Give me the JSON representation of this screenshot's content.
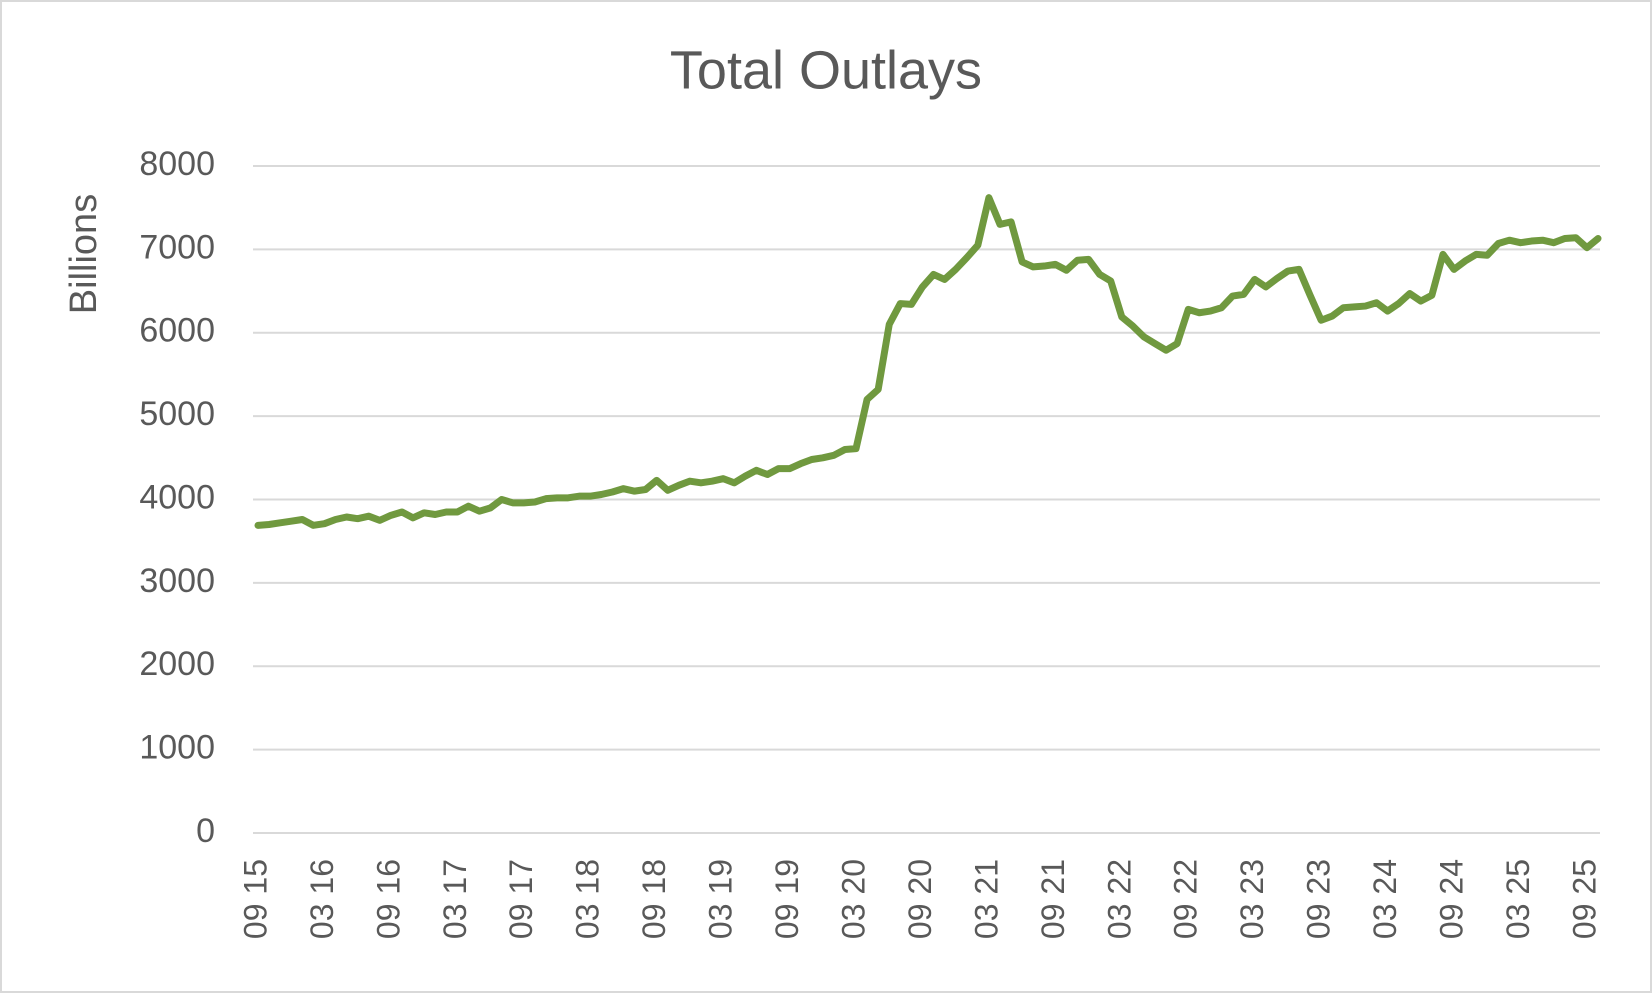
{
  "chart_data": {
    "type": "line",
    "title": "Total Outlays",
    "y_label": "Billions",
    "categories": [
      "09 15",
      null,
      null,
      null,
      null,
      null,
      "03 16",
      null,
      null,
      null,
      null,
      null,
      "09 16",
      null,
      null,
      null,
      null,
      null,
      "03 17",
      null,
      null,
      null,
      null,
      null,
      "09 17",
      null,
      null,
      null,
      null,
      null,
      "03 18",
      null,
      null,
      null,
      null,
      null,
      "09 18",
      null,
      null,
      null,
      null,
      null,
      "03 19",
      null,
      null,
      null,
      null,
      null,
      "09 19",
      null,
      null,
      null,
      null,
      null,
      "03 20",
      null,
      null,
      null,
      null,
      null,
      "09 20",
      null,
      null,
      null,
      null,
      null,
      "03 21",
      null,
      null,
      null,
      null,
      null,
      "09 21",
      null,
      null,
      null,
      null,
      null,
      "03 22",
      null,
      null,
      null,
      null,
      null,
      "09 22",
      null,
      null,
      null,
      null,
      null,
      "03 23",
      null,
      null,
      null,
      null,
      null,
      "09 23",
      null,
      null,
      null,
      null,
      null,
      "03 24",
      null,
      null,
      null,
      null,
      null,
      "09 24",
      null,
      null,
      null,
      null,
      null,
      "03 25",
      null,
      null,
      null,
      null,
      null,
      "09 25",
      null
    ],
    "series": [
      {
        "name": "Total Outlays",
        "color": "#70993f",
        "values": [
          3690,
          3700,
          3720,
          3740,
          3760,
          3690,
          3710,
          3760,
          3790,
          3770,
          3800,
          3750,
          3810,
          3850,
          3780,
          3840,
          3820,
          3850,
          3850,
          3920,
          3860,
          3900,
          4000,
          3960,
          3960,
          3970,
          4010,
          4020,
          4020,
          4040,
          4040,
          4060,
          4090,
          4130,
          4100,
          4120,
          4230,
          4110,
          4170,
          4220,
          4200,
          4220,
          4250,
          4200,
          4280,
          4350,
          4300,
          4370,
          4370,
          4430,
          4480,
          4500,
          4530,
          4600,
          4610,
          5200,
          5320,
          6100,
          6350,
          6340,
          6550,
          6700,
          6640,
          6760,
          6900,
          7050,
          7620,
          7300,
          7330,
          6850,
          6790,
          6800,
          6820,
          6750,
          6870,
          6880,
          6700,
          6620,
          6190,
          6080,
          5950,
          5870,
          5790,
          5870,
          6280,
          6240,
          6260,
          6300,
          6440,
          6460,
          6640,
          6550,
          6650,
          6740,
          6760,
          6450,
          6150,
          6200,
          6300,
          6310,
          6320,
          6360,
          6260,
          6350,
          6470,
          6380,
          6450,
          6940,
          6760,
          6860,
          6940,
          6930,
          7070,
          7110,
          7080,
          7100,
          7110,
          7080,
          7130,
          7140,
          7020,
          7130
        ]
      }
    ],
    "ylim": [
      0,
      8000
    ],
    "yticks": [
      0,
      1000,
      2000,
      3000,
      4000,
      5000,
      6000,
      7000,
      8000
    ],
    "grid": true
  }
}
